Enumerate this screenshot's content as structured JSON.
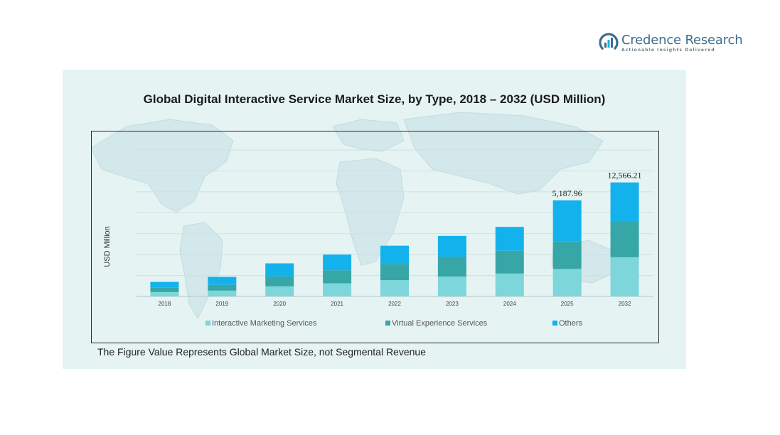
{
  "brand": {
    "name": "Credence Research",
    "tagline": "Actionable Insights Delivered"
  },
  "footnote": "The Figure Value Represents Global Market Size, not Segmental Revenue",
  "colors": {
    "interactive_marketing": "#7dd6d9",
    "virtual_experience": "#36a6a6",
    "others": "#14b2ec",
    "panel_bg": "#e5f3f3"
  },
  "chart_data": {
    "type": "bar",
    "stacked": true,
    "title": "Global Digital Interactive Service Market Size, by Type, 2018 – 2032 (USD Million)",
    "xlabel": "",
    "ylabel": "USD Million",
    "categories": [
      "2018",
      "2019",
      "2020",
      "2021",
      "2022",
      "2023",
      "2024",
      "2025",
      "2032"
    ],
    "ylim": [
      0,
      17500
    ],
    "grid": true,
    "legend_position": "bottom",
    "series": [
      {
        "name": "Interactive Marketing Services",
        "color": "#7dd6d9",
        "values": [
          520,
          690,
          1200,
          1560,
          1940,
          2360,
          2730,
          3280,
          4680
        ]
      },
      {
        "name": "Virtual Experience Services",
        "color": "#36a6a6",
        "values": [
          520,
          690,
          1190,
          1560,
          1940,
          2360,
          2730,
          3280,
          4320
        ]
      },
      {
        "name": "Others",
        "color": "#14b2ec",
        "values": [
          690,
          950,
          1560,
          1880,
          2180,
          2510,
          2850,
          4920,
          4620
        ]
      }
    ],
    "data_labels": [
      {
        "category": "2025",
        "text": "5,187.96"
      },
      {
        "category": "2032",
        "text": "12,566.21"
      }
    ]
  }
}
